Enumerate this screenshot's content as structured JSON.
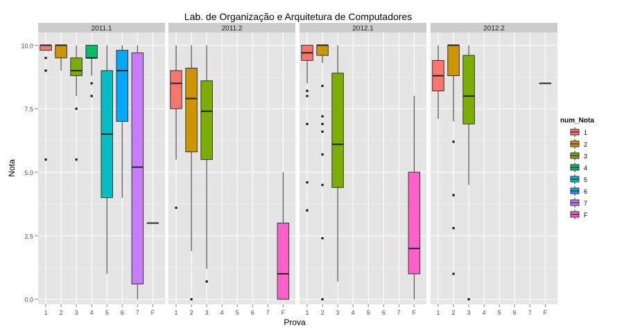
{
  "chart_data": {
    "type": "boxplot",
    "title": "Lab. de Organização e Arquitetura de Computadores",
    "xlabel": "Prova",
    "ylabel": "Nota",
    "ylim": [
      -0.2,
      10.5
    ],
    "yticks": [
      "0.0",
      "2.5",
      "5.0",
      "7.5",
      "10.0"
    ],
    "ytick_values": [
      0,
      2.5,
      5,
      7.5,
      10
    ],
    "categories": [
      "1",
      "2",
      "3",
      "4",
      "5",
      "6",
      "7",
      "F"
    ],
    "grid": true,
    "legend": {
      "title": "num_Nota",
      "placement": "right",
      "entries": [
        "1",
        "2",
        "3",
        "4",
        "5",
        "6",
        "7",
        "F"
      ]
    },
    "colors": {
      "1": "#F8766D",
      "2": "#CD9600",
      "3": "#7CAE00",
      "4": "#00BE67",
      "5": "#00BFC4",
      "6": "#00A9FF",
      "7": "#C77CFF",
      "F": "#FF61CC"
    },
    "panel_bg": "#E5E5E5",
    "strip_bg": "#CCCCCC",
    "panels": [
      {
        "label": "2011.1",
        "boxes": [
          {
            "cat": "1",
            "lw": 9.8,
            "q1": 9.8,
            "med": 10,
            "q3": 10,
            "uw": 10,
            "out": [
              9.5,
              9.0,
              5.5
            ]
          },
          {
            "cat": "2",
            "lw": 9.0,
            "q1": 9.5,
            "med": 10,
            "q3": 10,
            "uw": 10,
            "out": []
          },
          {
            "cat": "3",
            "lw": 8.0,
            "q1": 8.8,
            "med": 9.0,
            "q3": 9.5,
            "uw": 10,
            "out": [
              7.5,
              5.5
            ]
          },
          {
            "cat": "4",
            "lw": 8.8,
            "q1": 9.5,
            "med": 9.5,
            "q3": 10,
            "uw": 10,
            "out": [
              8.5,
              8.0
            ]
          },
          {
            "cat": "5",
            "lw": 1.0,
            "q1": 4.0,
            "med": 6.5,
            "q3": 9.0,
            "uw": 10,
            "out": []
          },
          {
            "cat": "6",
            "lw": 4.0,
            "q1": 7.0,
            "med": 9.0,
            "q3": 9.8,
            "uw": 10,
            "out": []
          },
          {
            "cat": "7",
            "lw": 0.0,
            "q1": 0.6,
            "med": 5.2,
            "q3": 9.7,
            "uw": 10,
            "out": []
          },
          {
            "cat": "F",
            "lw": 3.0,
            "q1": 3.0,
            "med": 3.0,
            "q3": 3.0,
            "uw": 3.0,
            "out": []
          }
        ]
      },
      {
        "label": "2011.2",
        "boxes": [
          {
            "cat": "1",
            "lw": 5.5,
            "q1": 7.5,
            "med": 8.5,
            "q3": 9.0,
            "uw": 10,
            "out": [
              3.6
            ]
          },
          {
            "cat": "2",
            "lw": 1.9,
            "q1": 5.8,
            "med": 7.9,
            "q3": 9.1,
            "uw": 10,
            "out": [
              0.0
            ]
          },
          {
            "cat": "3",
            "lw": 1.2,
            "q1": 5.5,
            "med": 7.4,
            "q3": 8.6,
            "uw": 10,
            "out": [
              0.7
            ]
          },
          {
            "cat": "F",
            "lw": 0.0,
            "q1": 0.0,
            "med": 1.0,
            "q3": 3.0,
            "uw": 5.0,
            "out": []
          }
        ]
      },
      {
        "label": "2012.1",
        "boxes": [
          {
            "cat": "1",
            "lw": 8.5,
            "q1": 9.4,
            "med": 9.7,
            "q3": 10,
            "uw": 10,
            "out": [
              8.2,
              8.0,
              6.9,
              4.6,
              3.5
            ]
          },
          {
            "cat": "2",
            "lw": 9.3,
            "q1": 9.6,
            "med": 10,
            "q3": 10,
            "uw": 10,
            "out": [
              8.4,
              7.2,
              6.9,
              6.6,
              5.7,
              4.5,
              2.4,
              0.0
            ]
          },
          {
            "cat": "3",
            "lw": 0.7,
            "q1": 4.4,
            "med": 6.1,
            "q3": 8.9,
            "uw": 10,
            "out": []
          },
          {
            "cat": "F",
            "lw": 0.0,
            "q1": 1.0,
            "med": 2.0,
            "q3": 5.0,
            "uw": 8.0,
            "out": []
          }
        ]
      },
      {
        "label": "2012.2",
        "boxes": [
          {
            "cat": "1",
            "lw": 7.1,
            "q1": 8.2,
            "med": 8.8,
            "q3": 9.4,
            "uw": 10,
            "out": []
          },
          {
            "cat": "2",
            "lw": 7.0,
            "q1": 8.8,
            "med": 10,
            "q3": 10,
            "uw": 10,
            "out": [
              6.2,
              4.1,
              2.8,
              1.0
            ]
          },
          {
            "cat": "3",
            "lw": 4.5,
            "q1": 6.9,
            "med": 8.0,
            "q3": 9.6,
            "uw": 10,
            "out": [
              0.0
            ]
          },
          {
            "cat": "F",
            "lw": 8.5,
            "q1": 8.5,
            "med": 8.5,
            "q3": 8.5,
            "uw": 8.5,
            "out": []
          }
        ]
      }
    ]
  }
}
